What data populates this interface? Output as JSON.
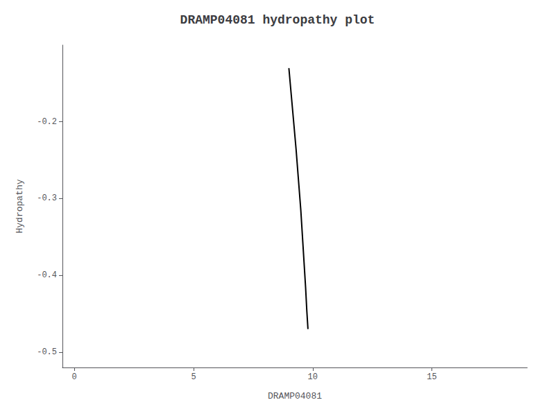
{
  "chart_data": {
    "type": "line",
    "title": "DRAMP04081 hydropathy plot",
    "xlabel": "DRAMP04081",
    "ylabel": "Hydropathy",
    "x": [
      9.0,
      9.1,
      9.2,
      9.3,
      9.4,
      9.5,
      9.6,
      9.7,
      9.75,
      9.8
    ],
    "values": [
      -0.13,
      -0.165,
      -0.2,
      -0.235,
      -0.275,
      -0.315,
      -0.365,
      -0.415,
      -0.445,
      -0.47
    ],
    "color": "#000000",
    "xlim": [
      -0.5,
      19.0
    ],
    "ylim": [
      -0.52,
      -0.1
    ],
    "xticks": [
      0,
      5,
      10,
      15
    ],
    "yticks": [
      -0.5,
      -0.4,
      -0.3,
      -0.2
    ],
    "grid": false
  }
}
